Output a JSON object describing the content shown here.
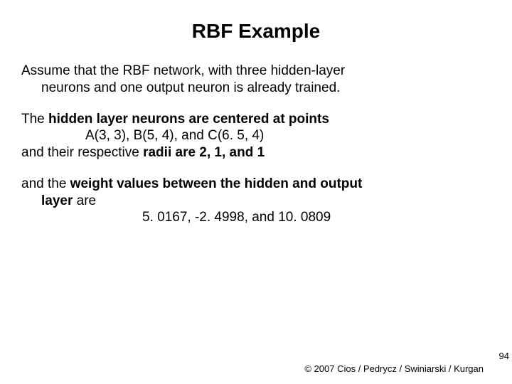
{
  "title": {
    "text": "RBF Example",
    "fontsize": 28,
    "weight": "bold",
    "color": "#000000",
    "align": "center"
  },
  "body_fontsize": 19,
  "body_color": "#000000",
  "background_color": "#ffffff",
  "para1": {
    "line1": "Assume that the RBF network, with three hidden-layer",
    "line2": "neurons and one output neuron is already trained."
  },
  "para2": {
    "line1_a": "The ",
    "line1_b": "hidden layer neurons are centered at points",
    "line2": "A(3, 3), B(5, 4), and C(6. 5, 4)",
    "line3_a": "and their respective ",
    "line3_b": "radii are 2, 1, and 1"
  },
  "para3": {
    "line1_a": "and the ",
    "line1_b": "weight values between the hidden and output",
    "line2": "layer ",
    "line2_b": "are",
    "line3": "5. 0167, -2. 4998, and 10. 0809"
  },
  "footer": {
    "text": "© 2007 Cios / Pedrycz / Swiniarski / Kurgan",
    "fontsize": 13,
    "color": "#000000"
  },
  "pagenum": {
    "text": "94",
    "fontsize": 13,
    "color": "#000000"
  }
}
